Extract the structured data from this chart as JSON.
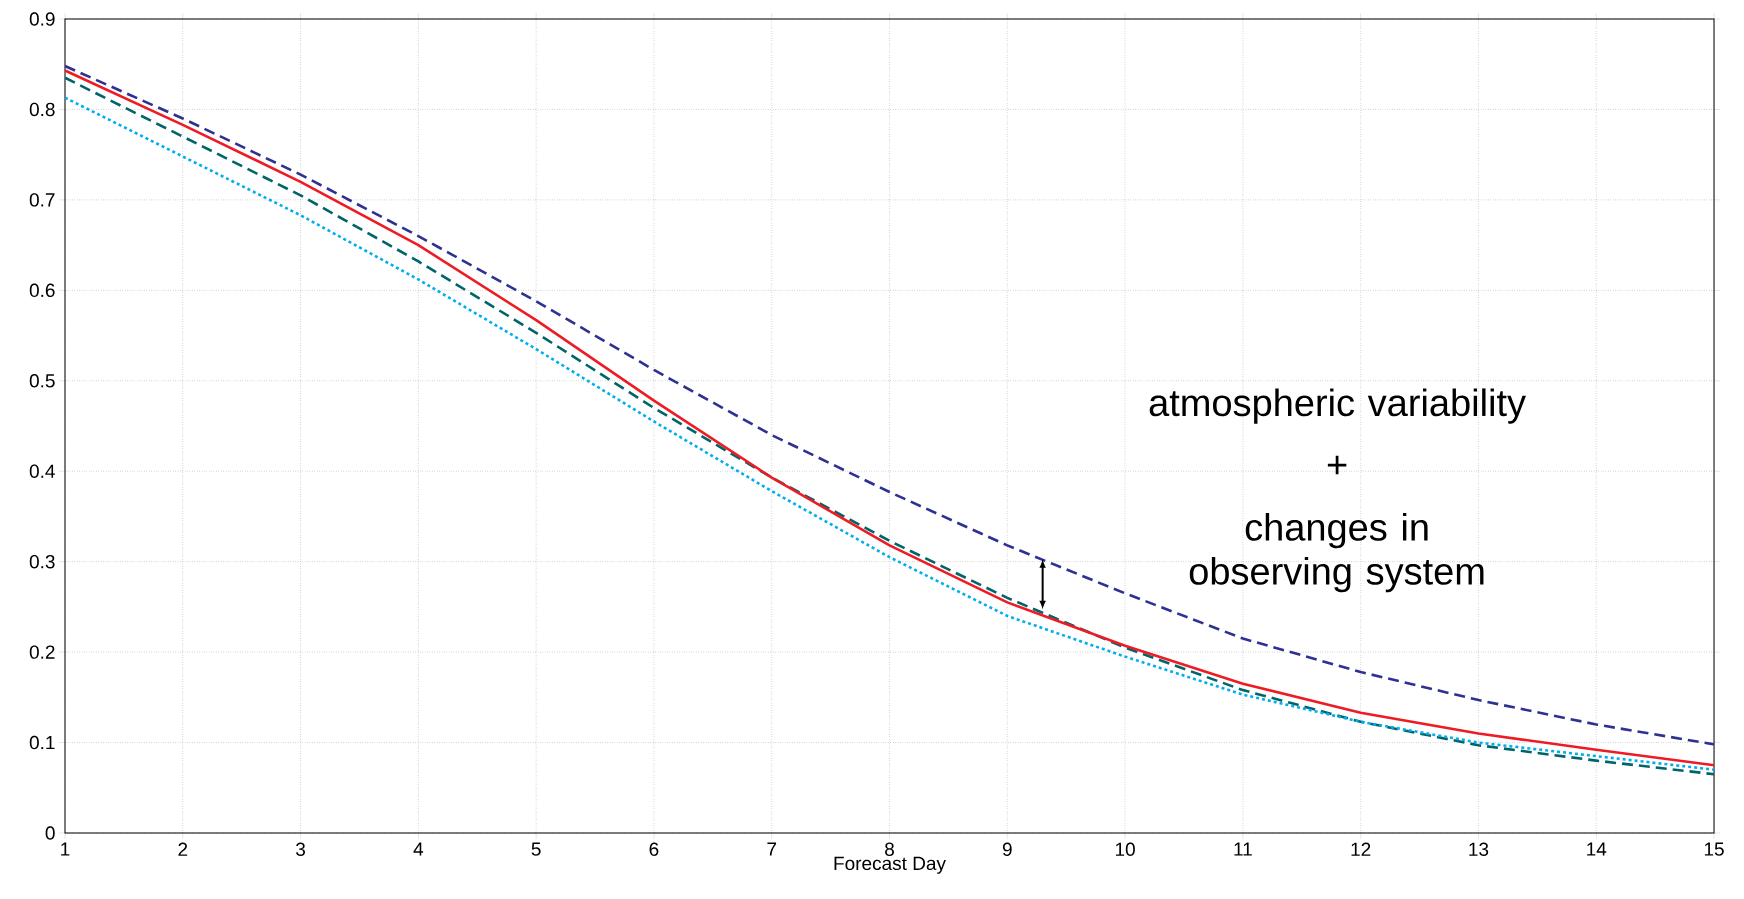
{
  "chart_data": {
    "type": "line",
    "xlabel": "Forecast Day",
    "x": [
      1,
      2,
      3,
      4,
      5,
      6,
      7,
      8,
      9,
      10,
      11,
      12,
      13,
      14,
      15
    ],
    "series": [
      {
        "color": "#2e3192",
        "line_style": "dashed",
        "values": [
          0.848,
          0.79,
          0.728,
          0.66,
          0.588,
          0.512,
          0.44,
          0.377,
          0.318,
          0.265,
          0.215,
          0.178,
          0.147,
          0.12,
          0.098
        ]
      },
      {
        "color": "#00656b",
        "line_style": "dashed",
        "values": [
          0.835,
          0.77,
          0.705,
          0.632,
          0.553,
          0.47,
          0.393,
          0.323,
          0.26,
          0.205,
          0.158,
          0.123,
          0.097,
          0.08,
          0.065
        ]
      },
      {
        "color": "#00aeef",
        "line_style": "dotted",
        "values": [
          0.813,
          0.748,
          0.683,
          0.612,
          0.535,
          0.455,
          0.378,
          0.305,
          0.24,
          0.195,
          0.153,
          0.123,
          0.1,
          0.085,
          0.07
        ]
      },
      {
        "color": "#ed1c24",
        "line_style": "solid",
        "values": [
          0.843,
          0.783,
          0.72,
          0.65,
          0.567,
          0.478,
          0.393,
          0.318,
          0.255,
          0.207,
          0.165,
          0.133,
          0.11,
          0.092,
          0.075
        ]
      }
    ],
    "xlim": [
      1,
      15
    ],
    "ylim": [
      0,
      0.9
    ],
    "xticks": [
      1,
      2,
      3,
      4,
      5,
      6,
      7,
      8,
      9,
      10,
      11,
      12,
      13,
      14,
      15
    ],
    "yticks": [
      0,
      0.1,
      0.2,
      0.3,
      0.4,
      0.5,
      0.6,
      0.7,
      0.8,
      0.9
    ],
    "grid": true,
    "marker": "none",
    "annotations": [
      "atmospheric variability",
      "+",
      "changes in observing system"
    ]
  }
}
